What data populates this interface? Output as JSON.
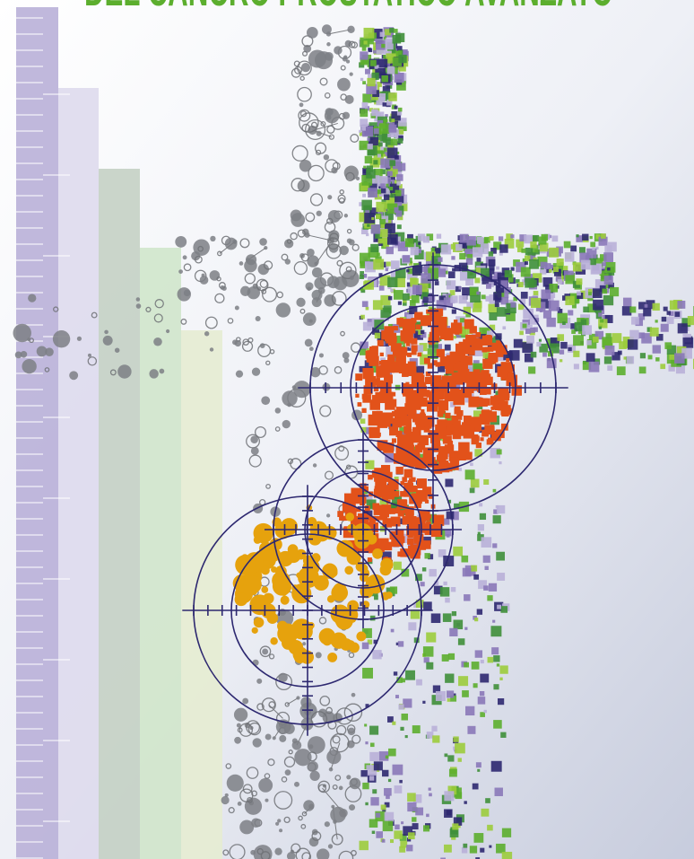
{
  "header": {
    "title": "DEL CANCRO PROSTATICO AVANZATO"
  }
}
